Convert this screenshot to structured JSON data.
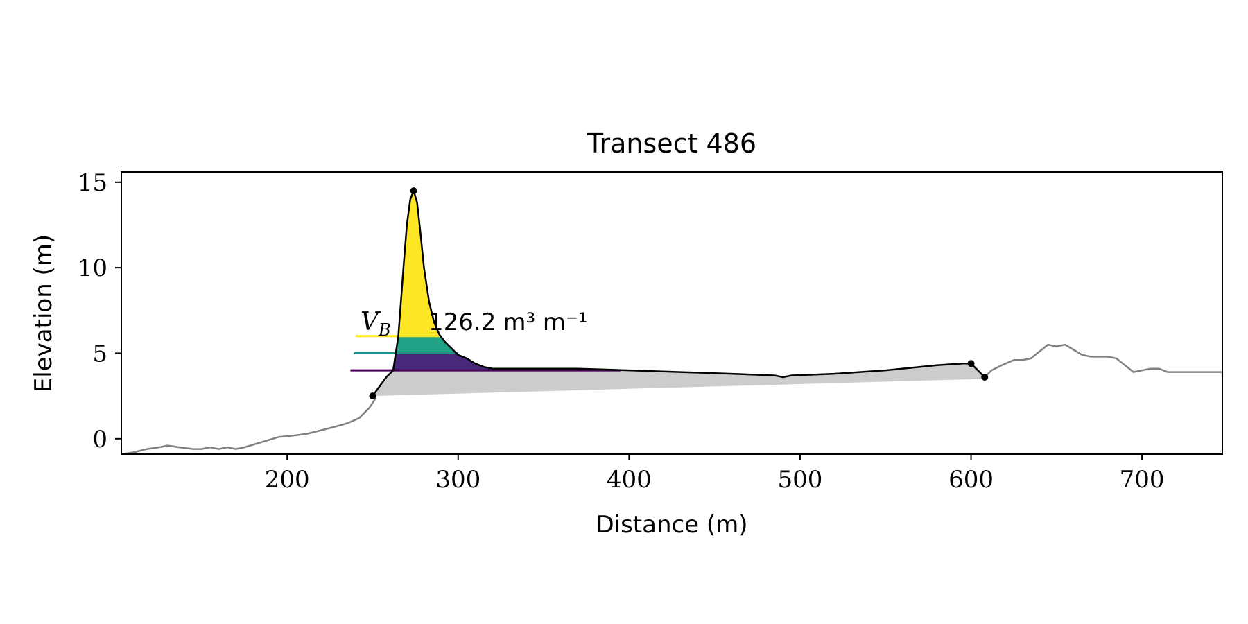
{
  "chart_data": {
    "type": "area",
    "title": "Transect 486",
    "xlabel": "Distance (m)",
    "ylabel": "Elevation (m)",
    "xlim": [
      103,
      747
    ],
    "ylim": [
      -0.9,
      15.6
    ],
    "x_ticks": [
      200,
      300,
      400,
      500,
      600,
      700
    ],
    "y_ticks": [
      0,
      5,
      10,
      15
    ],
    "grid": false,
    "annotation": {
      "lhs": "V_B",
      "value": "126.2",
      "units": "m³ m⁻¹"
    },
    "colors": {
      "full_profile": "#808080",
      "dune_profile": "#000000",
      "base_fill": "#cccccc",
      "band_yellow": "#fde725",
      "band_teal": "#21a185",
      "band_purple": "#482878",
      "line_purple": "#440154",
      "line_teal": "#21918c",
      "line_yellow": "#fde725"
    },
    "full_profile": {
      "x": [
        103,
        110,
        118,
        125,
        130,
        137,
        145,
        150,
        155,
        160,
        165,
        170,
        175,
        185,
        195,
        205,
        212,
        220,
        228,
        235,
        242,
        248,
        252
      ],
      "y": [
        -0.9,
        -0.8,
        -0.6,
        -0.5,
        -0.4,
        -0.5,
        -0.6,
        -0.6,
        -0.5,
        -0.6,
        -0.5,
        -0.6,
        -0.5,
        -0.2,
        0.1,
        0.2,
        0.3,
        0.5,
        0.7,
        0.9,
        1.2,
        1.8,
        2.4
      ]
    },
    "back_profile": {
      "x": [
        608,
        612,
        618,
        625,
        630,
        635,
        640,
        645,
        650,
        655,
        660,
        665,
        670,
        675,
        680,
        685,
        690,
        695,
        700,
        705,
        710,
        715,
        720,
        725,
        730,
        735,
        740,
        747
      ],
      "y": [
        3.6,
        4.0,
        4.3,
        4.6,
        4.6,
        4.7,
        5.1,
        5.5,
        5.4,
        5.5,
        5.2,
        4.9,
        4.8,
        4.8,
        4.8,
        4.7,
        4.3,
        3.9,
        4.0,
        4.1,
        4.1,
        3.9,
        3.9,
        3.9,
        3.9,
        3.9,
        3.9,
        3.9
      ]
    },
    "dune_profile": {
      "x": [
        250,
        255,
        258,
        262,
        265,
        268,
        270,
        272,
        274,
        276,
        278,
        280,
        283,
        286,
        289,
        292,
        296,
        300,
        305,
        310,
        315,
        320,
        330,
        350,
        370,
        400,
        430,
        460,
        485,
        490,
        495,
        520,
        550,
        580,
        595,
        600,
        604,
        608
      ],
      "y": [
        2.5,
        3.2,
        3.6,
        4.0,
        6.0,
        10.0,
        12.5,
        14.0,
        14.5,
        13.8,
        12.0,
        10.0,
        8.0,
        6.8,
        6.1,
        5.7,
        5.3,
        4.9,
        4.7,
        4.4,
        4.2,
        4.1,
        4.1,
        4.1,
        4.1,
        4.0,
        3.9,
        3.8,
        3.7,
        3.6,
        3.7,
        3.8,
        4.0,
        4.3,
        4.4,
        4.4,
        4.0,
        3.6
      ]
    },
    "base_line": {
      "x": [
        250,
        608
      ],
      "y": [
        2.5,
        3.5
      ]
    },
    "dune_points": {
      "x": [
        250,
        274,
        600,
        608
      ],
      "y": [
        2.5,
        14.5,
        4.4,
        3.6
      ]
    },
    "bands": [
      {
        "name": "yellow",
        "from": 6.0,
        "to": 15
      },
      {
        "name": "teal",
        "from": 5.0,
        "to": 6.0
      },
      {
        "name": "purple",
        "from": 4.0,
        "to": 5.0
      }
    ],
    "level_lines": [
      {
        "name": "purple",
        "y": 4.0,
        "x_from": 237,
        "x_to": 395
      },
      {
        "name": "teal",
        "y": 5.0,
        "x_from": 239,
        "x_to": 300
      },
      {
        "name": "yellow",
        "y": 6.0,
        "x_from": 240,
        "x_to": 290
      }
    ]
  }
}
